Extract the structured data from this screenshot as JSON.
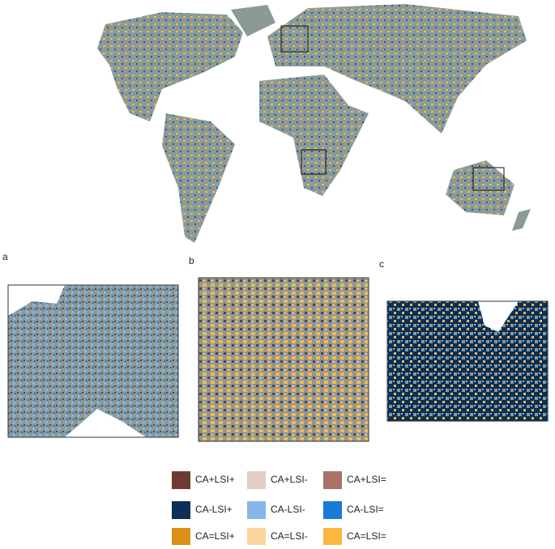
{
  "panels": [
    {
      "label": "a"
    },
    {
      "label": "b"
    },
    {
      "label": "c"
    }
  ],
  "legend": [
    {
      "label": "CA+LSI+",
      "color": "#6e3b33"
    },
    {
      "label": "CA+LSI-",
      "color": "#e2cdc8"
    },
    {
      "label": "CA+LSI=",
      "color": "#a9736a"
    },
    {
      "label": "CA-LSI+",
      "color": "#0b2f56"
    },
    {
      "label": "CA-LSI-",
      "color": "#86b6ea"
    },
    {
      "label": "CA-LSI=",
      "color": "#1a7ad8"
    },
    {
      "label": "CA=LSI+",
      "color": "#d89114"
    },
    {
      "label": "CA=LSI-",
      "color": "#fcd59a"
    },
    {
      "label": "CA=LSI=",
      "color": "#fbb841"
    }
  ]
}
